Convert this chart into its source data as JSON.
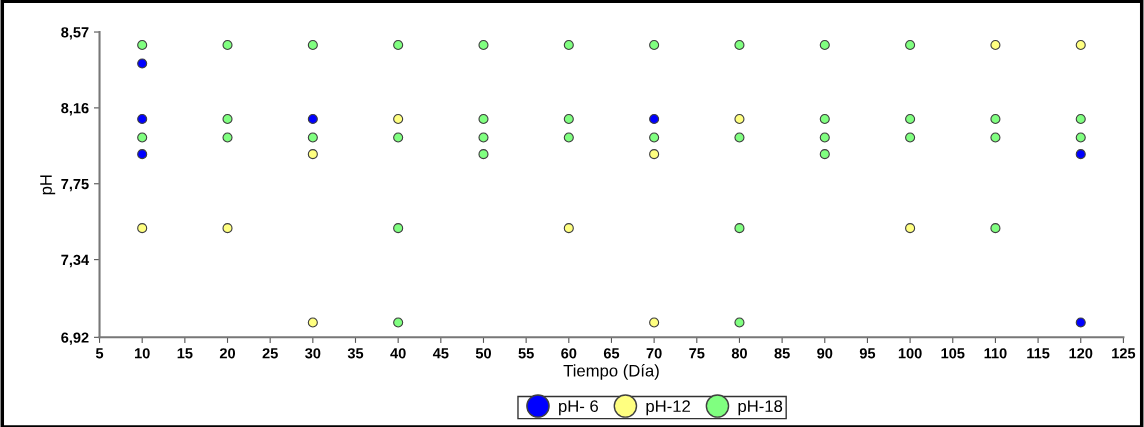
{
  "chart_data": {
    "type": "scatter",
    "xlabel": "Tiempo (Día)",
    "ylabel": "pH",
    "xlim": [
      5,
      125
    ],
    "xticks": [
      5,
      10,
      15,
      20,
      25,
      30,
      35,
      40,
      45,
      50,
      55,
      60,
      65,
      70,
      75,
      80,
      85,
      90,
      95,
      100,
      105,
      110,
      115,
      120,
      125
    ],
    "ylim": [
      6.92,
      8.57
    ],
    "yticks": [
      {
        "value": 6.92,
        "label": "6,92"
      },
      {
        "value": 7.34,
        "label": "7,34"
      },
      {
        "value": 7.75,
        "label": "7,75"
      },
      {
        "value": 8.16,
        "label": "8,16"
      },
      {
        "value": 8.57,
        "label": "8,57"
      }
    ],
    "grid": false,
    "legend": "bottom",
    "marker": "circle",
    "series": [
      {
        "name": "pH- 6",
        "color": "#0000ff",
        "x": [
          10,
          10,
          10,
          30,
          70,
          120,
          120
        ],
        "values": [
          8.4,
          8.1,
          7.91,
          8.1,
          8.1,
          7.91,
          7.0
        ]
      },
      {
        "name": "pH-12",
        "color": "#ffff80",
        "x": [
          10,
          20,
          30,
          30,
          40,
          60,
          70,
          70,
          80,
          100,
          110,
          120
        ],
        "values": [
          7.51,
          7.51,
          7.91,
          7.0,
          8.1,
          7.51,
          7.91,
          7.0,
          8.1,
          7.51,
          8.5,
          8.5
        ]
      },
      {
        "name": "pH-18",
        "color": "#80ff80",
        "x": [
          10,
          10,
          20,
          20,
          20,
          30,
          30,
          40,
          40,
          40,
          40,
          50,
          50,
          50,
          50,
          60,
          60,
          60,
          70,
          70,
          80,
          80,
          80,
          80,
          90,
          90,
          90,
          90,
          100,
          100,
          100,
          110,
          110,
          110,
          120,
          120
        ],
        "values": [
          8.5,
          8.0,
          8.5,
          8.1,
          8.0,
          8.5,
          8.0,
          8.5,
          8.0,
          7.51,
          7.0,
          8.5,
          8.1,
          8.0,
          7.91,
          8.5,
          8.1,
          8.0,
          8.5,
          8.0,
          8.5,
          8.0,
          7.51,
          7.0,
          8.5,
          8.1,
          8.0,
          7.91,
          8.5,
          8.1,
          8.0,
          8.1,
          8.0,
          7.51,
          8.1,
          8.0
        ]
      }
    ]
  }
}
